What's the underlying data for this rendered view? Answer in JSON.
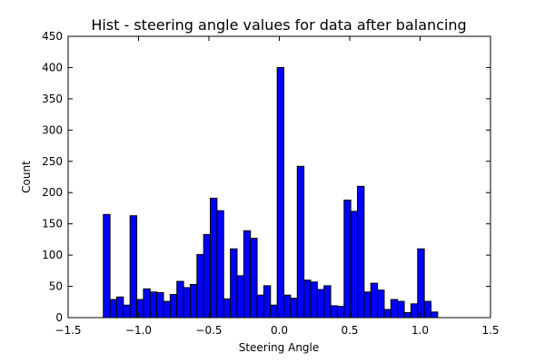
{
  "chart_data": {
    "type": "bar",
    "title": "Hist - steering angle values for data after balancing",
    "xlabel": "Steering Angle",
    "ylabel": "Count",
    "xlim": [
      -1.5,
      1.5
    ],
    "ylim": [
      0,
      450
    ],
    "xticks": [
      "−1.5",
      "−1.0",
      "−0.5",
      "0.0",
      "0.5",
      "1.0",
      "1.5"
    ],
    "yticks": [
      "0",
      "50",
      "100",
      "150",
      "200",
      "250",
      "300",
      "350",
      "400",
      "450"
    ],
    "grid": false,
    "bar_color": "#0000ff",
    "bin_width": 0.0475,
    "bin_start": -1.25,
    "values": [
      165,
      29,
      33,
      20,
      163,
      29,
      46,
      41,
      40,
      26,
      37,
      58,
      48,
      53,
      101,
      133,
      191,
      171,
      30,
      110,
      67,
      139,
      127,
      36,
      51,
      20,
      400,
      36,
      31,
      242,
      60,
      57,
      45,
      51,
      19,
      18,
      188,
      170,
      210,
      41,
      55,
      44,
      13,
      29,
      26,
      8,
      22,
      110,
      26,
      9
    ]
  }
}
